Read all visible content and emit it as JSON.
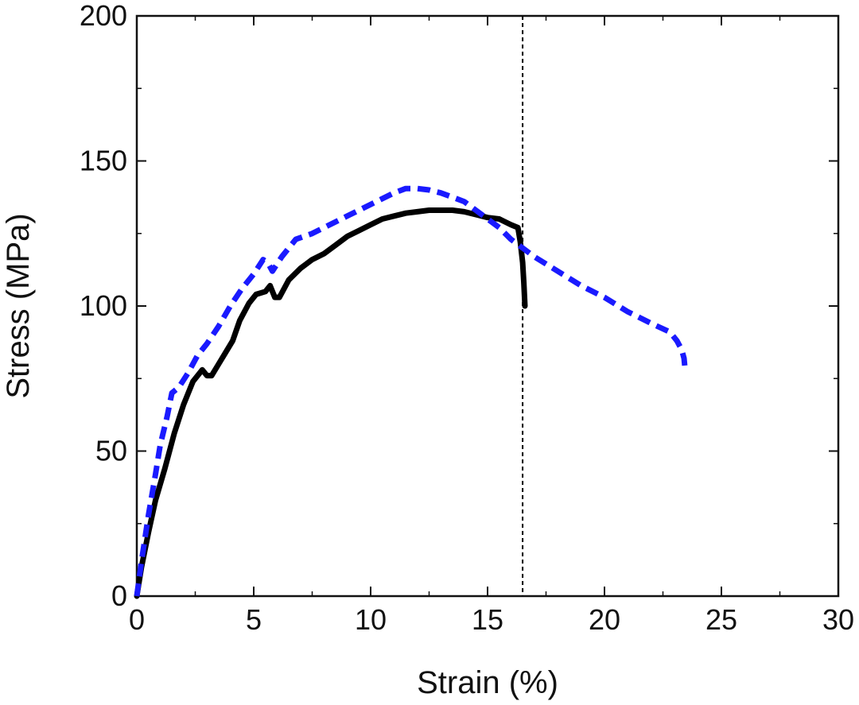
{
  "chart_data": {
    "type": "line",
    "title": "",
    "xlabel": "Strain (%)",
    "ylabel": "Stress (MPa)",
    "xlim": [
      0,
      30
    ],
    "ylim": [
      0,
      200
    ],
    "xticks": [
      0,
      5,
      10,
      15,
      20,
      25,
      30
    ],
    "yticks": [
      0,
      50,
      100,
      150,
      200
    ],
    "grid": false,
    "series": [
      {
        "color": "#000000",
        "style": "solid",
        "x": [
          0,
          0.2,
          0.5,
          0.8,
          1.2,
          1.6,
          2.0,
          2.4,
          2.8,
          3.0,
          3.2,
          3.5,
          3.8,
          4.1,
          4.4,
          4.8,
          5.1,
          5.5,
          5.7,
          5.9,
          6.1,
          6.5,
          7.0,
          7.5,
          8.0,
          8.5,
          9.0,
          9.5,
          10.0,
          10.5,
          11.0,
          11.5,
          12.0,
          12.5,
          13.0,
          13.5,
          14.0,
          14.5,
          15.0,
          15.5,
          16.0,
          16.3,
          16.4,
          16.5,
          16.55,
          16.6
        ],
        "y": [
          0,
          10,
          22,
          33,
          44,
          56,
          66,
          74,
          78,
          76,
          76,
          80,
          84,
          88,
          95,
          101,
          104,
          105,
          107,
          103,
          103,
          109,
          113,
          116,
          118,
          121,
          124,
          126,
          128,
          130,
          131,
          132,
          132.5,
          133,
          133,
          133,
          132.5,
          131.5,
          130.5,
          130,
          128,
          127,
          122,
          115,
          108,
          100
        ]
      },
      {
        "color": "#1a1aff",
        "style": "dashed",
        "x": [
          0,
          0.2,
          0.5,
          0.8,
          1.0,
          1.3,
          1.5,
          1.8,
          2.2,
          2.6,
          3.0,
          3.5,
          4.0,
          4.5,
          5.0,
          5.4,
          5.6,
          5.8,
          6.2,
          6.8,
          7.5,
          8.0,
          9.0,
          10.0,
          11.0,
          11.5,
          12.0,
          12.5,
          13.0,
          13.5,
          14.0,
          14.5,
          15.0,
          15.5,
          16.0,
          16.5,
          17.0,
          18.0,
          19.0,
          20.0,
          21.0,
          22.0,
          22.8,
          23.1,
          23.3,
          23.4,
          23.45
        ],
        "y": [
          0,
          12,
          28,
          42,
          52,
          62,
          70,
          72,
          77,
          83,
          87,
          93,
          100,
          106,
          111,
          116,
          115,
          112,
          117,
          123,
          125,
          127,
          131,
          135,
          139,
          140.5,
          140.5,
          140,
          139,
          137.5,
          136,
          133,
          130,
          127,
          123,
          120,
          117,
          112,
          107,
          103,
          98,
          94,
          91,
          88,
          85,
          82,
          78
        ]
      }
    ],
    "reference_lines": [
      {
        "orientation": "vertical",
        "x": 16.5,
        "style": "dotted",
        "color": "#000000"
      }
    ]
  }
}
